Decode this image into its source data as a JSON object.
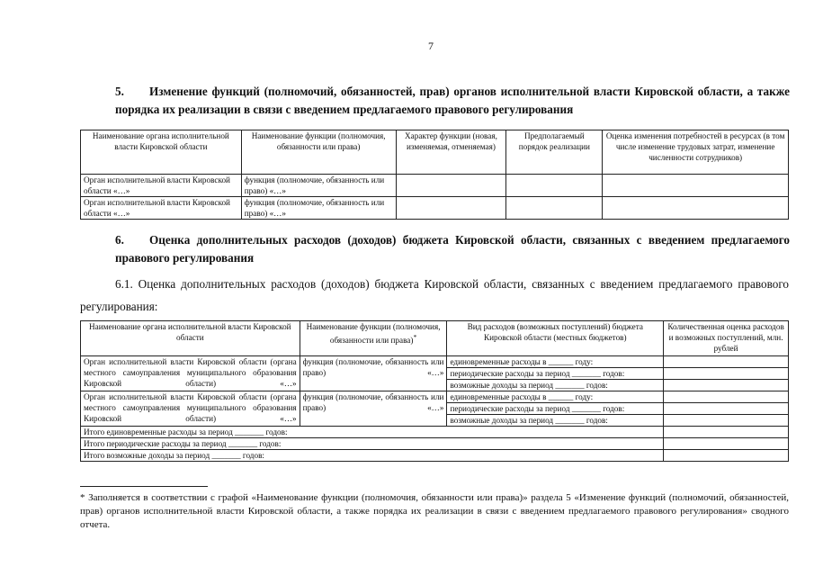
{
  "page_number": "7",
  "section5": {
    "number": "5.",
    "title": "Изменение функций (полномочий, обязанностей, прав) органов исполнительной власти Кировской области, а также порядка их реализации в связи с введением предлагаемого правового регулирования",
    "table": {
      "headers": [
        "Наименование органа исполнительной власти Кировской области",
        "Наименование функции (полномочия, обязанности или права)",
        "Характер функции (новая, изменяемая, отменяемая)",
        "Предполагаемый порядок реализации",
        "Оценка изменения потребностей в ресурсах (в том числе изменение трудовых затрат, изменение численности сотрудников)"
      ],
      "rows": [
        [
          "Орган исполнительной власти Кировской области «…»",
          "функция (полномочие, обязанность или право) «…»",
          "",
          "",
          ""
        ],
        [
          "Орган исполнительной власти Кировской области «…»",
          "функция (полномочие, обязанность или право) «…»",
          "",
          "",
          ""
        ]
      ]
    }
  },
  "section6": {
    "number": "6.",
    "title": "Оценка дополнительных расходов (доходов) бюджета Кировской области, связанных с введением предлагаемого правового регулирования",
    "sub": "6.1. Оценка дополнительных расходов (доходов) бюджета Кировской области, связанных с введением предлагаемого правового регулирования:",
    "table": {
      "headers": [
        "Наименование органа исполнительной власти Кировской области",
        "Наименование функции (полномочия, обязанности или права)",
        "*",
        "Вид расходов (возможных поступлений) бюджета Кировской области (местных бюджетов)",
        "Количественная оценка расходов и возможных поступлений, млн. рублей"
      ],
      "groups": [
        {
          "organ": "Орган исполнительной власти Кировской области (органа местного самоуправления муниципального образования Кировской области) «…»",
          "function": "функция (полномочие, обязанность или право) «…»",
          "types": [
            "единовременные расходы в ______ году:",
            "периодические расходы за период _______ годов:",
            "возможные доходы за период _______ годов:"
          ]
        },
        {
          "organ": "Орган исполнительной власти Кировской области (органа местного самоуправления муниципального образования Кировской области) «…»",
          "function": "функция (полномочие, обязанность или право) «…»",
          "types": [
            "единовременные расходы в ______ году:",
            "периодические расходы за период _______ годов:",
            "возможные доходы за период _______ годов:"
          ]
        }
      ],
      "totals": [
        "Итого единовременные расходы за период _______ годов:",
        "Итого периодические расходы за период _______ годов:",
        "Итого возможные доходы за период _______ годов:"
      ]
    }
  },
  "footnote": "* Заполняется в соответствии с графой «Наименование функции (полномочия, обязанности или права)» раздела 5 «Изменение функций (полномочий, обязанностей, прав) органов исполнительной власти Кировской области, а также порядка их реализации в связи с введением предлагаемого правового регулирования» сводного отчета."
}
